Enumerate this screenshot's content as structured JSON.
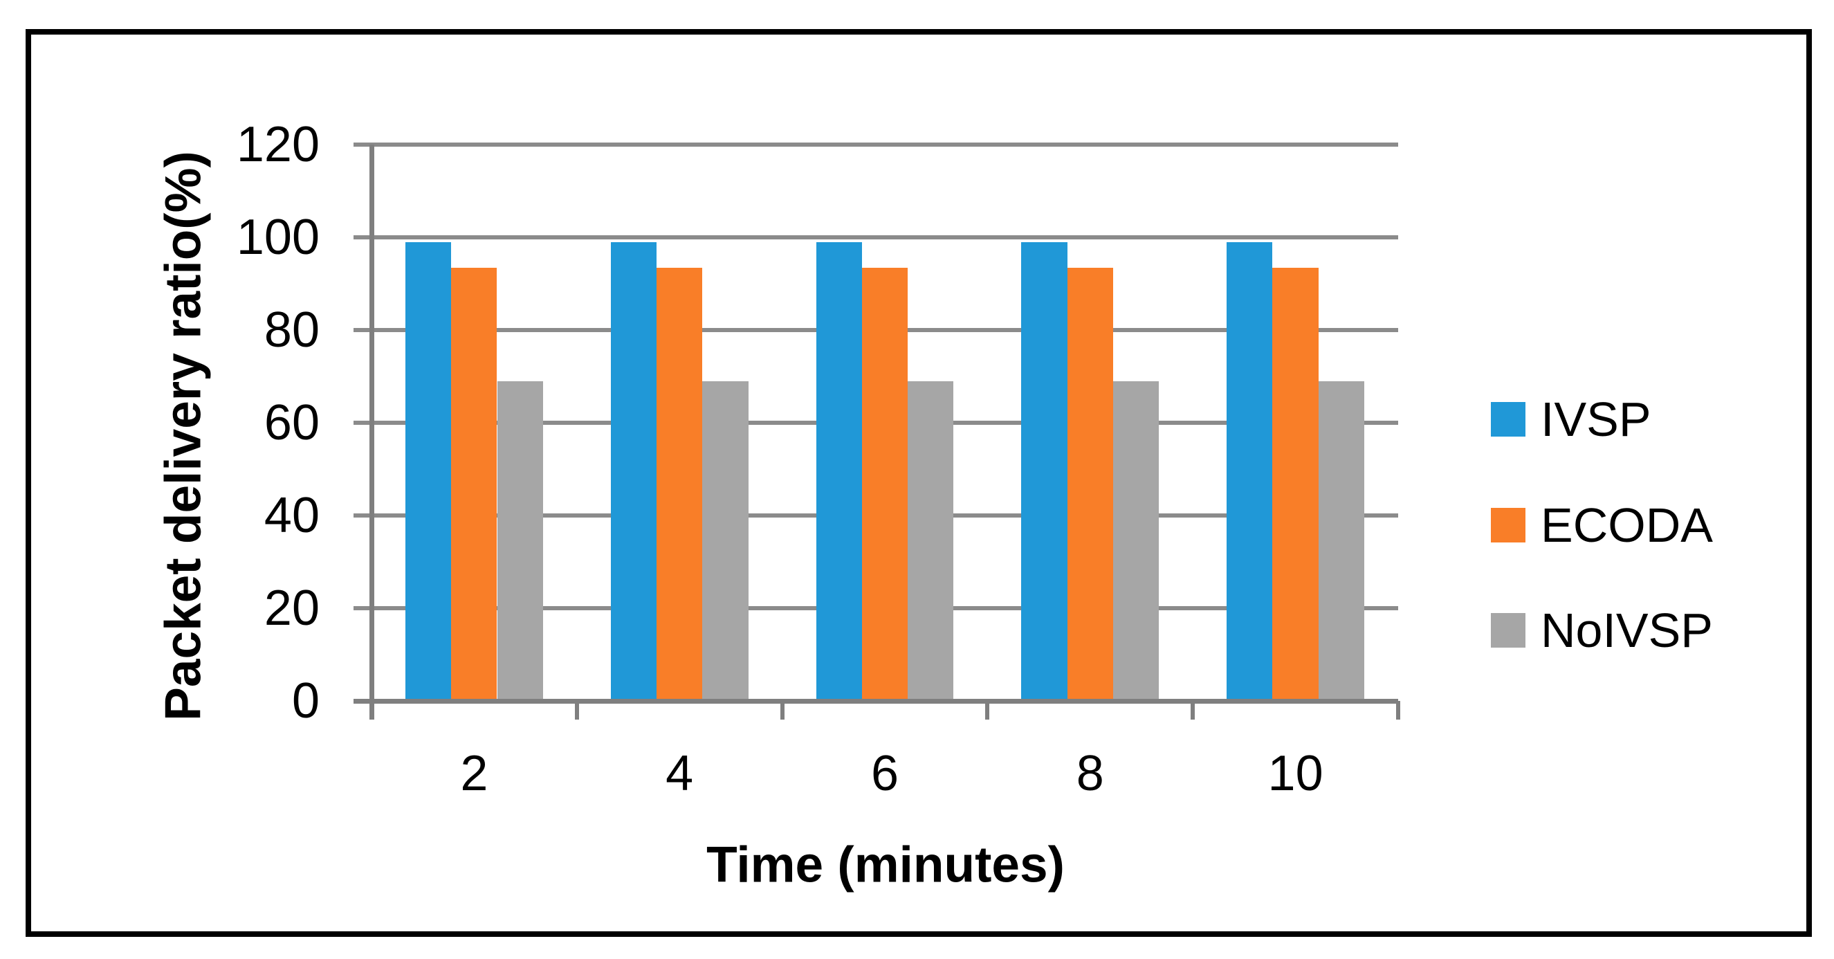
{
  "chart_data": {
    "type": "bar",
    "title": "",
    "xlabel": "Time (minutes)",
    "ylabel": "Packet delivery ratio(%)",
    "categories": [
      "2",
      "4",
      "6",
      "8",
      "10"
    ],
    "series": [
      {
        "name": "IVSP",
        "color": "#2098d7",
        "values": [
          99,
          99,
          99,
          99,
          99
        ]
      },
      {
        "name": "ECODA",
        "color": "#f97e28",
        "values": [
          93.5,
          93.5,
          93.5,
          93.5,
          93.5
        ]
      },
      {
        "name": "NoIVSP",
        "color": "#a6a6a6",
        "values": [
          69,
          69,
          69,
          69,
          69
        ]
      }
    ],
    "ylim": [
      0,
      120
    ],
    "ytick_step": 20,
    "ytick_labels": [
      "0",
      "20",
      "40",
      "60",
      "80",
      "100",
      "120"
    ],
    "grid": true,
    "legend_position": "right",
    "colors": {
      "gridline": "#8b8b8b",
      "axis_line": "#7f7f7f",
      "text": "#000000",
      "frame_border": "#000000",
      "background": "#ffffff"
    }
  }
}
